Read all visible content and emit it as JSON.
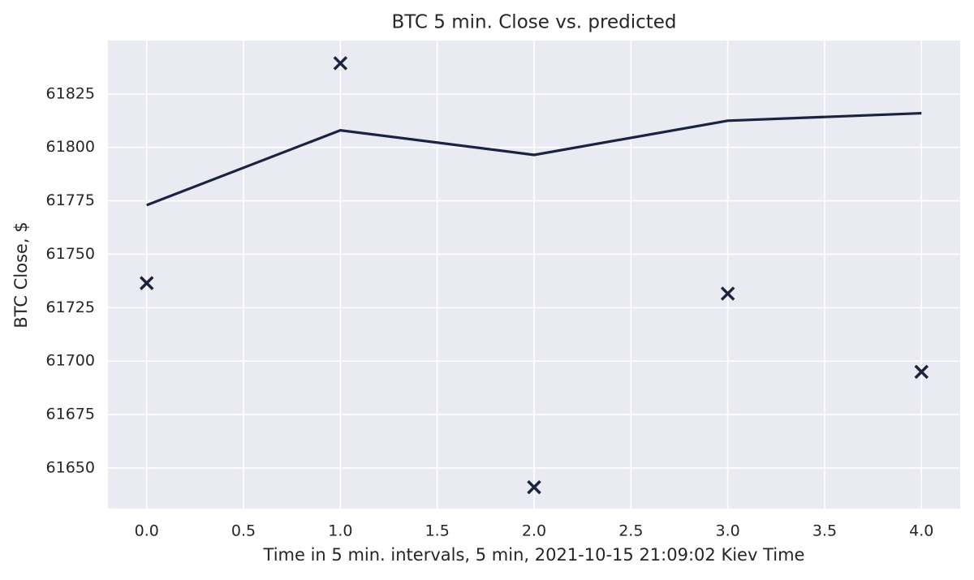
{
  "chart_data": {
    "type": "line",
    "title": "BTC 5 min. Close vs. predicted",
    "x_label": "Time in 5 min. intervals, 5 min, 2021-10-15 21:09:02 Kiev Time",
    "y_label": "BTC Close, $",
    "x": [
      0,
      1,
      2,
      3,
      4
    ],
    "series": [
      {
        "color": "#1c2340",
        "style": "line",
        "values": [
          61773,
          61808,
          61796.5,
          61812.5,
          61816
        ]
      },
      {
        "color": "#1c2340",
        "style": "x-marker",
        "values": [
          61736.5,
          61839.4,
          61641,
          61731.6,
          61695
        ]
      }
    ],
    "xlim": [
      -0.2,
      4.2
    ],
    "xticks": [
      {
        "value": 0,
        "label": "0.0"
      },
      0.5,
      {
        "value": 1,
        "label": "1.0"
      },
      1.5,
      {
        "value": 2,
        "label": "2.0"
      },
      2.5,
      {
        "value": 3,
        "label": "3.0"
      },
      3.5,
      {
        "value": 4,
        "label": "4.0"
      }
    ],
    "ylim": [
      61631,
      61850
    ],
    "yticks": [
      61650,
      61675,
      61700,
      61725,
      61750,
      61775,
      61800,
      61825
    ],
    "grid": true,
    "background": "#eaeaf2"
  }
}
